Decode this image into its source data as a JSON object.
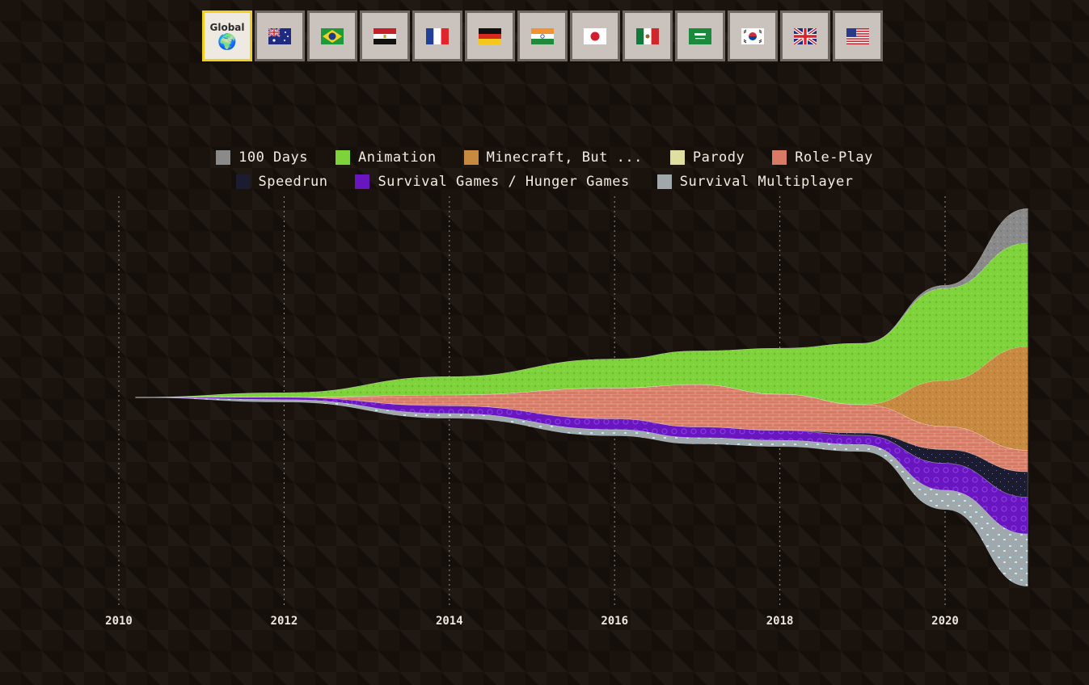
{
  "tabs": [
    {
      "label": "Global",
      "icon": "globe-icon",
      "active": true
    },
    {
      "icon": "flag-australia-icon",
      "active": false
    },
    {
      "icon": "flag-brazil-icon",
      "active": false
    },
    {
      "icon": "flag-egypt-icon",
      "active": false
    },
    {
      "icon": "flag-france-icon",
      "active": false
    },
    {
      "icon": "flag-germany-icon",
      "active": false
    },
    {
      "icon": "flag-india-icon",
      "active": false
    },
    {
      "icon": "flag-japan-icon",
      "active": false
    },
    {
      "icon": "flag-mexico-icon",
      "active": false
    },
    {
      "icon": "flag-saudi-arabia-icon",
      "active": false
    },
    {
      "icon": "flag-south-korea-icon",
      "active": false
    },
    {
      "icon": "flag-uk-icon",
      "active": false
    },
    {
      "icon": "flag-usa-icon",
      "active": false
    }
  ],
  "chart_data": {
    "type": "area",
    "layout": "streamgraph",
    "x": [
      2010.2,
      2012,
      2014,
      2016,
      2017,
      2018,
      2019,
      2020,
      2021
    ],
    "x_ticks": [
      "2010",
      "2012",
      "2014",
      "2016",
      "2018",
      "2020"
    ],
    "xlim": [
      2010,
      2021
    ],
    "grid": "vertical dashed",
    "legend_position": "top",
    "series": [
      {
        "name": "100 Days",
        "color": "#8a8a8a",
        "values": [
          0,
          0,
          0,
          0,
          0,
          0,
          0,
          4,
          45
        ]
      },
      {
        "name": "Animation",
        "color": "#7ed23a",
        "values": [
          0,
          6,
          24,
          38,
          44,
          60,
          80,
          120,
          135
        ]
      },
      {
        "name": "Minecraft, But ...",
        "color": "#c88a40",
        "values": [
          0,
          0,
          0,
          0,
          0,
          0,
          0,
          60,
          135
        ]
      },
      {
        "name": "Parody",
        "color": "#dfe0a0",
        "values": [
          0,
          0,
          0,
          0,
          0,
          0,
          0,
          0,
          0
        ]
      },
      {
        "name": "Role-Play",
        "color": "#d97a64",
        "values": [
          0,
          0,
          14,
          40,
          55,
          47,
          37,
          30,
          28
        ]
      },
      {
        "name": "Speedrun",
        "color": "#1c1c30",
        "values": [
          0,
          0,
          0,
          0,
          0,
          0,
          3,
          18,
          33
        ]
      },
      {
        "name": "Survival Games / Hunger Games",
        "color": "#6a16c0",
        "values": [
          0,
          3,
          10,
          14,
          14,
          13,
          12,
          35,
          48
        ]
      },
      {
        "name": "Survival Multiplayer",
        "color": "#a0a8ac",
        "values": [
          0,
          3,
          6,
          8,
          8,
          8,
          9,
          25,
          68
        ]
      }
    ]
  }
}
